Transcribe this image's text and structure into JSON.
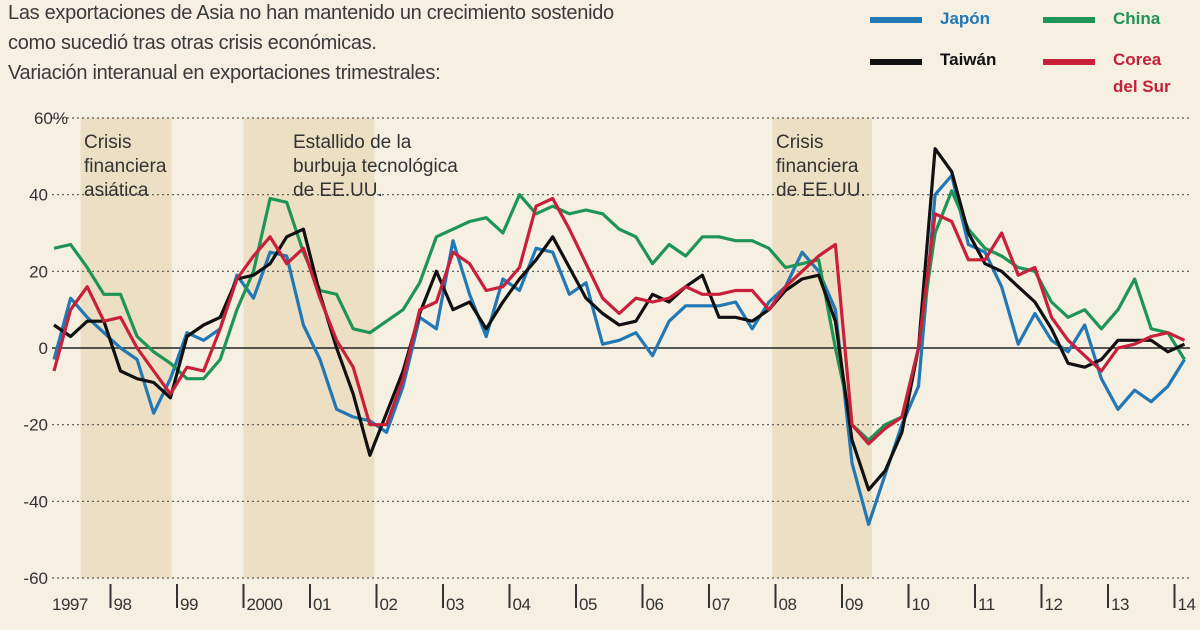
{
  "subtitle": [
    "Las exportaciones de Asia no han mantenido un crecimiento sostenido",
    "como sucedió tras otras crisis económicas.",
    "Variación interanual en exportaciones trimestrales:"
  ],
  "colors": {
    "japon": "#2278b5",
    "china": "#1e9457",
    "taiwan": "#111111",
    "corea": "#c8203a",
    "band": "#ecdfc4",
    "bg": "#f5f0e2"
  },
  "chart_data": {
    "type": "line",
    "title": "Variación interanual en exportaciones trimestrales",
    "ylabel": "%",
    "ylim": [
      -60,
      60
    ],
    "yticks": [
      60,
      40,
      20,
      0,
      -20,
      -40,
      -60
    ],
    "ytick_labels": [
      "60%",
      "40",
      "20",
      "0",
      "-20",
      "-40",
      "-60"
    ],
    "xlim": [
      1997,
      2014.25
    ],
    "xticks": [
      1997,
      1998,
      1999,
      2000,
      2001,
      2002,
      2003,
      2004,
      2005,
      2006,
      2007,
      2008,
      2009,
      2010,
      2011,
      2012,
      2013,
      2014
    ],
    "xtick_labels": [
      "1997",
      "98",
      "99",
      "2000",
      "01",
      "02",
      "03",
      "04",
      "05",
      "06",
      "07",
      "08",
      "09",
      "10",
      "11",
      "12",
      "13",
      "14"
    ],
    "x_start": 1997.15,
    "x_step": 0.25,
    "legend_position": "top-right",
    "series": [
      {
        "key": "japon",
        "name": "Japón",
        "values": [
          -3,
          13,
          8,
          4,
          0,
          -3,
          -17,
          -8,
          4,
          2,
          5,
          19,
          13,
          25,
          24,
          6,
          -3,
          -16,
          -18,
          -19,
          -22,
          -10,
          8,
          5,
          28,
          14,
          3,
          18,
          15,
          26,
          25,
          14,
          17,
          1,
          2,
          4,
          -2,
          7,
          11,
          11,
          11,
          12,
          5,
          12,
          16,
          25,
          20,
          10,
          -30,
          -46,
          -33,
          -20,
          -10,
          40,
          45,
          27,
          25,
          16,
          1,
          9,
          2,
          -1,
          6,
          -8,
          -16,
          -11,
          -14,
          -10,
          -3
        ]
      },
      {
        "key": "china",
        "name": "China",
        "values": [
          26,
          27,
          21,
          14,
          14,
          3,
          -1,
          -4,
          -8,
          -8,
          -3,
          10,
          20,
          39,
          38,
          25,
          15,
          14,
          5,
          4,
          7,
          10,
          17,
          29,
          31,
          33,
          34,
          30,
          40,
          35,
          37,
          35,
          36,
          35,
          31,
          29,
          22,
          27,
          24,
          29,
          29,
          28,
          28,
          26,
          21,
          22,
          23,
          0,
          -20,
          -24,
          -20,
          -18,
          0,
          30,
          41,
          31,
          26,
          24,
          21,
          20,
          12,
          8,
          10,
          5,
          10,
          18,
          5,
          4,
          -3
        ]
      },
      {
        "key": "taiwan",
        "name": "Taiwán",
        "values": [
          6,
          3,
          7,
          7,
          -6,
          -8,
          -9,
          -13,
          3,
          6,
          8,
          18,
          19,
          22,
          29,
          31,
          14,
          0,
          -12,
          -28,
          -17,
          -6,
          9,
          20,
          10,
          12,
          5,
          12,
          18,
          23,
          29,
          21,
          13,
          9,
          6,
          7,
          14,
          12,
          16,
          19,
          8,
          8,
          7,
          10,
          15,
          18,
          19,
          7,
          -24,
          -37,
          -32,
          -22,
          0,
          52,
          46,
          30,
          22,
          20,
          16,
          12,
          5,
          -4,
          -5,
          -3,
          2,
          2,
          2,
          -1,
          1
        ]
      },
      {
        "key": "corea",
        "name": "Corea del Sur",
        "values": [
          -6,
          10,
          16,
          7,
          8,
          0,
          -6,
          -12,
          -5,
          -6,
          5,
          18,
          24,
          29,
          22,
          26,
          13,
          2,
          -5,
          -20,
          -20,
          -8,
          10,
          12,
          25,
          22,
          15,
          16,
          21,
          37,
          39,
          31,
          22,
          13,
          9,
          13,
          12,
          13,
          16,
          14,
          14,
          15,
          15,
          10,
          16,
          20,
          24,
          27,
          -20,
          -25,
          -21,
          -18,
          0,
          35,
          33,
          23,
          23,
          30,
          19,
          21,
          8,
          2,
          -2,
          -6,
          0,
          1,
          3,
          4,
          2
        ]
      }
    ],
    "shaded_periods": [
      {
        "from": 1997.55,
        "to": 1998.92,
        "label": [
          "Crisis",
          "financiera",
          "asiática"
        ]
      },
      {
        "from": 2000.0,
        "to": 2001.97,
        "label": [
          "Estallido de la",
          "burbuja tecnológica",
          "de EE.UU."
        ]
      },
      {
        "from": 2007.95,
        "to": 2009.45,
        "label": [
          "Crisis",
          "financiera",
          "de EE.UU."
        ]
      }
    ]
  },
  "legend": {
    "japon": "Japón",
    "china": "China",
    "taiwan": "Taiwán",
    "corea_1": "Corea",
    "corea_2": "del Sur"
  }
}
